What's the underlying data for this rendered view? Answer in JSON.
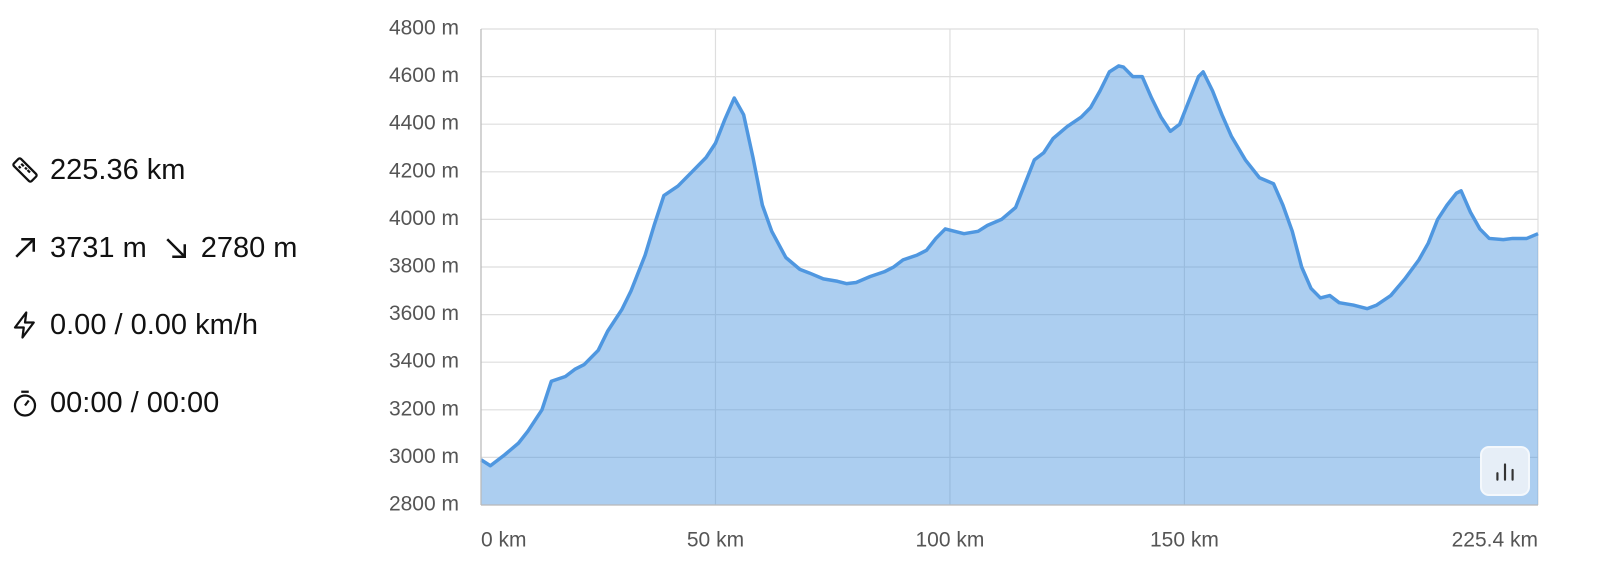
{
  "stats": {
    "distance": "225.36 km",
    "elevation_gain": "3731 m",
    "elevation_loss": "2780 m",
    "speed": "0.00 / 0.00 km/h",
    "time": "00:00 / 00:00"
  },
  "chart_data": {
    "type": "area",
    "color": "#4f97e0",
    "x": [
      0,
      2,
      5,
      8,
      10,
      13,
      15,
      18,
      20,
      22,
      25,
      27,
      30,
      32,
      35,
      37,
      39,
      42,
      45,
      48,
      50,
      52,
      54,
      56,
      58,
      60,
      62,
      65,
      68,
      70,
      73,
      76,
      78,
      80,
      83,
      86,
      88,
      90,
      93,
      95,
      97,
      99,
      101,
      103,
      106,
      108,
      111,
      114,
      116,
      118,
      120,
      122,
      125,
      128,
      130,
      132,
      134,
      136,
      137,
      139,
      141,
      143,
      145,
      147,
      149,
      151,
      153,
      154,
      156,
      158,
      160,
      163,
      166,
      169,
      171,
      173,
      175,
      177,
      179,
      181,
      183,
      186,
      189,
      191,
      194,
      197,
      200,
      202,
      204,
      206,
      208,
      209,
      211,
      213,
      215,
      218,
      220,
      223,
      225.4
    ],
    "values": [
      2990,
      2965,
      3010,
      3060,
      3110,
      3200,
      3320,
      3340,
      3370,
      3390,
      3450,
      3530,
      3620,
      3700,
      3850,
      3980,
      4100,
      4140,
      4200,
      4260,
      4320,
      4420,
      4510,
      4440,
      4260,
      4060,
      3950,
      3840,
      3790,
      3775,
      3750,
      3740,
      3730,
      3735,
      3760,
      3780,
      3800,
      3830,
      3850,
      3870,
      3920,
      3960,
      3950,
      3940,
      3950,
      3975,
      4000,
      4050,
      4150,
      4250,
      4280,
      4340,
      4390,
      4430,
      4470,
      4540,
      4620,
      4645,
      4640,
      4600,
      4600,
      4510,
      4430,
      4370,
      4400,
      4500,
      4600,
      4620,
      4540,
      4440,
      4350,
      4250,
      4175,
      4150,
      4060,
      3950,
      3800,
      3710,
      3670,
      3680,
      3650,
      3640,
      3625,
      3640,
      3680,
      3750,
      3830,
      3900,
      4000,
      4060,
      4110,
      4120,
      4030,
      3960,
      3920,
      3915,
      3920,
      3920,
      3940
    ],
    "xlim": [
      0,
      225.4
    ],
    "xticks": [
      {
        "value": 0,
        "label": "0 km"
      },
      {
        "value": 50,
        "label": "50 km"
      },
      {
        "value": 100,
        "label": "100 km"
      },
      {
        "value": 150,
        "label": "150 km"
      },
      {
        "value": 225.4,
        "label": "225.4 km"
      }
    ],
    "ylim": [
      2800,
      4800
    ],
    "yticks": [
      {
        "value": 2800,
        "label": "2800 m"
      },
      {
        "value": 3000,
        "label": "3000 m"
      },
      {
        "value": 3200,
        "label": "3200 m"
      },
      {
        "value": 3400,
        "label": "3400 m"
      },
      {
        "value": 3600,
        "label": "3600 m"
      },
      {
        "value": 3800,
        "label": "3800 m"
      },
      {
        "value": 4000,
        "label": "4000 m"
      },
      {
        "value": 4200,
        "label": "4200 m"
      },
      {
        "value": 4400,
        "label": "4400 m"
      },
      {
        "value": 4600,
        "label": "4600 m"
      },
      {
        "value": 4800,
        "label": "4800 m"
      }
    ],
    "grid": true
  }
}
